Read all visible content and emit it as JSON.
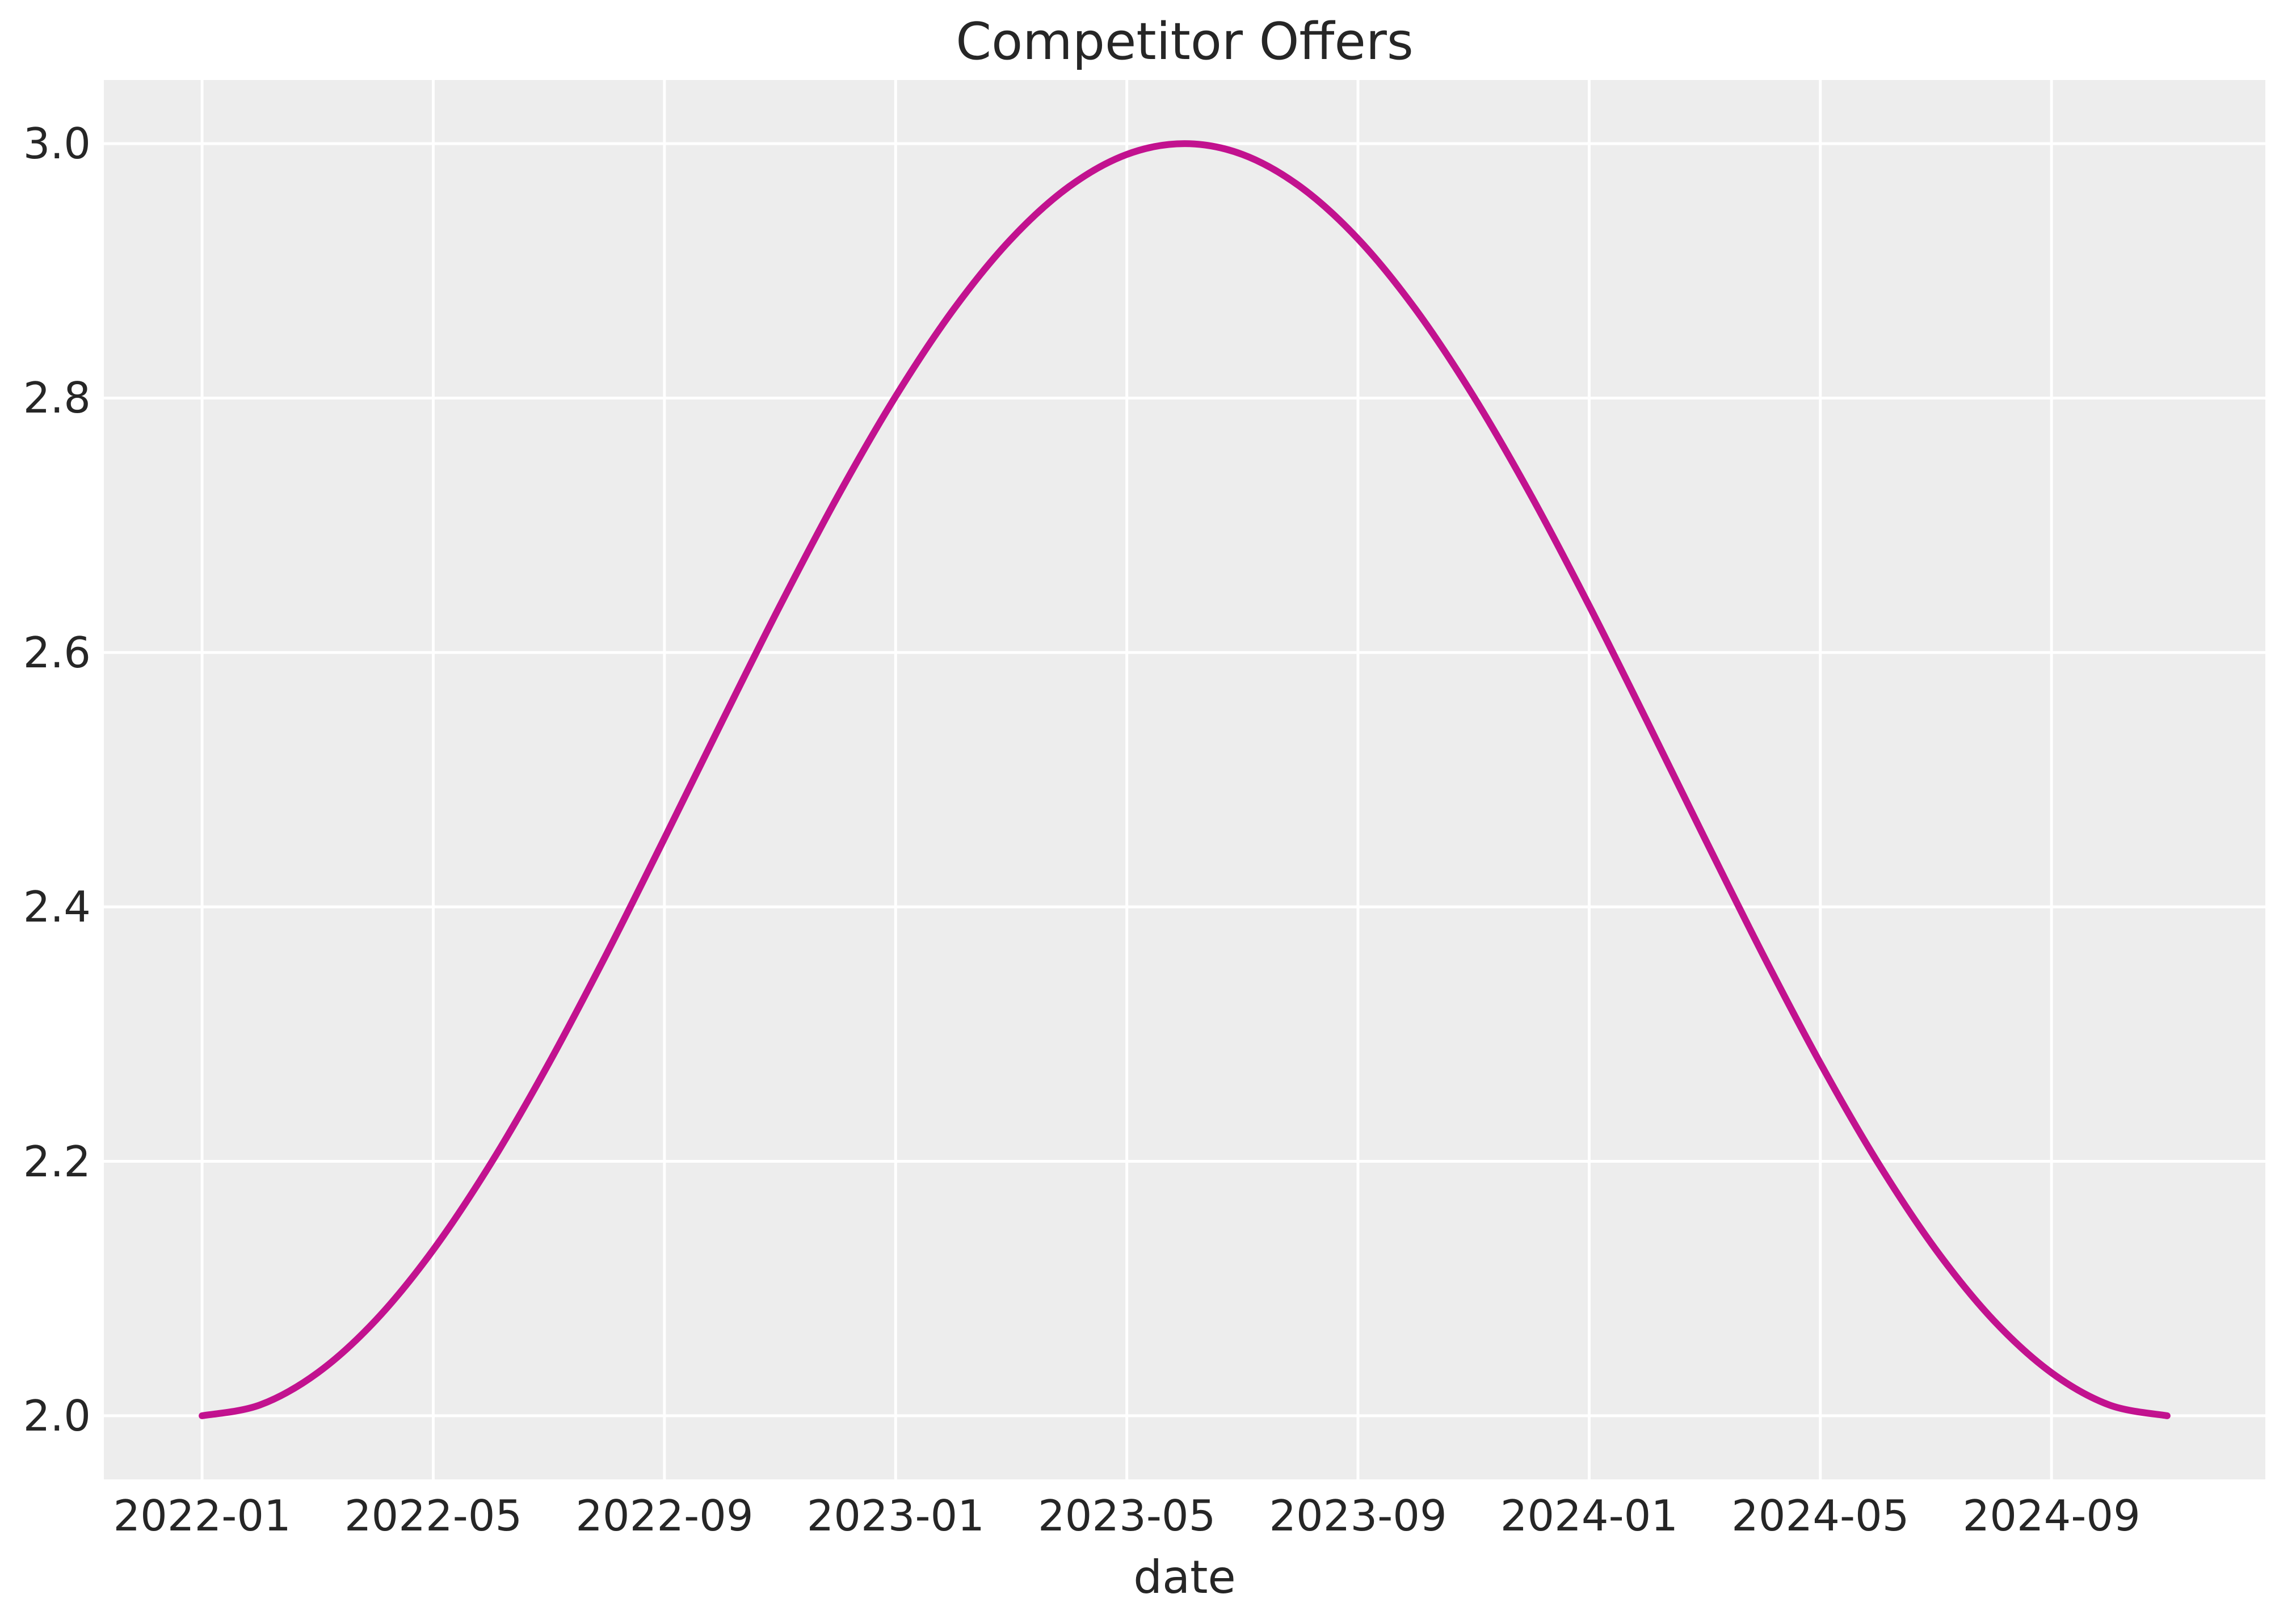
{
  "chart_data": {
    "type": "line",
    "title": "Competitor Offers",
    "xlabel": "date",
    "ylabel": "",
    "grid": true,
    "legend": "none",
    "colors": {
      "line": "#C2128F",
      "plot_background": "#EDEDED",
      "gridline": "#FFFFFF",
      "text": "#262626",
      "figure_background": "#FFFFFF"
    },
    "x": [
      "2022-01",
      "2022-02",
      "2022-03",
      "2022-04",
      "2022-05",
      "2022-06",
      "2022-07",
      "2022-08",
      "2022-09",
      "2022-10",
      "2022-11",
      "2022-12",
      "2023-01",
      "2023-02",
      "2023-03",
      "2023-04",
      "2023-05",
      "2023-06",
      "2023-07",
      "2023-08",
      "2023-09",
      "2023-10",
      "2023-11",
      "2023-12",
      "2024-01",
      "2024-02",
      "2024-03",
      "2024-04",
      "2024-05",
      "2024-06",
      "2024-07",
      "2024-08",
      "2024-09",
      "2024-10",
      "2024-11"
    ],
    "series": [
      {
        "name": "Competitor Offers",
        "color": "#C2128F",
        "values": [
          2.0,
          2.0085,
          2.0338,
          2.0749,
          2.1305,
          2.1987,
          2.2771,
          2.3632,
          2.4539,
          2.5461,
          2.6368,
          2.7229,
          2.8013,
          2.8695,
          2.9251,
          2.9662,
          2.9915,
          3.0,
          2.9915,
          2.9662,
          2.9251,
          2.8695,
          2.8013,
          2.7229,
          2.6368,
          2.5461,
          2.4539,
          2.3632,
          2.2771,
          2.1987,
          2.1305,
          2.0749,
          2.0338,
          2.0085,
          2.0
        ]
      }
    ],
    "x_ticks": {
      "indices": [
        0,
        4,
        8,
        12,
        16,
        20,
        24,
        28,
        32
      ],
      "labels": [
        "2022-01",
        "2022-05",
        "2022-09",
        "2023-01",
        "2023-05",
        "2023-09",
        "2024-01",
        "2024-05",
        "2024-09"
      ]
    },
    "y_ticks": {
      "values": [
        2.0,
        2.2,
        2.4,
        2.6,
        2.8,
        3.0
      ],
      "labels": [
        "2.0",
        "2.2",
        "2.4",
        "2.6",
        "2.8",
        "3.0"
      ]
    },
    "ylim": [
      1.95,
      3.05
    ],
    "xlim_index": [
      -1.7,
      35.7
    ]
  }
}
